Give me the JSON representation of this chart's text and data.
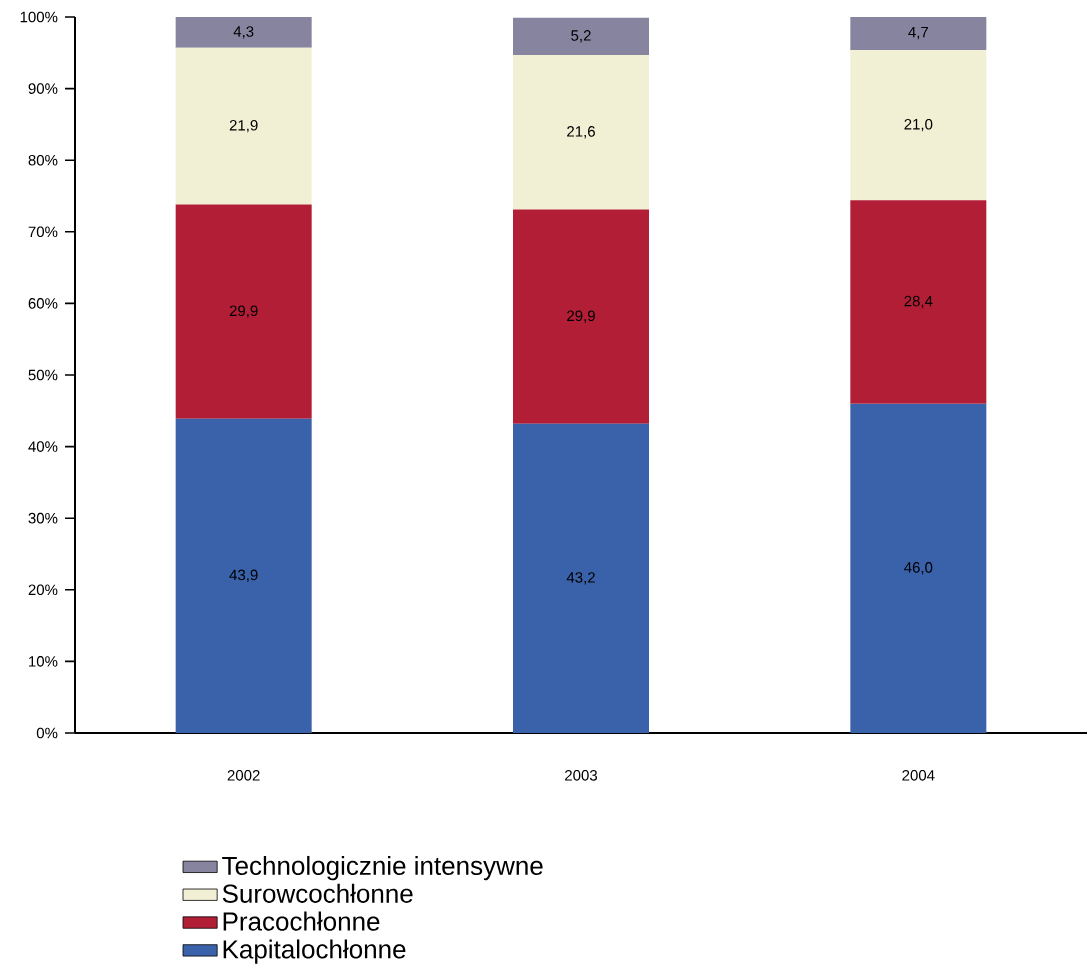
{
  "chart_data": {
    "type": "bar",
    "stacked": true,
    "categories": [
      "2002",
      "2003",
      "2004"
    ],
    "series": [
      {
        "name": "Kapitalochłonne",
        "color": "#3a62aa",
        "values": [
          43.9,
          43.2,
          46.0
        ],
        "value_labels": [
          "43,9",
          "43,2",
          "46,0"
        ]
      },
      {
        "name": "Pracochłonne",
        "color": "#b31e37",
        "values": [
          29.9,
          29.9,
          28.4
        ],
        "value_labels": [
          "29,9",
          "29,9",
          "28,4"
        ]
      },
      {
        "name": "Surowcochłonne",
        "color": "#f2f0d4",
        "values": [
          21.9,
          21.6,
          21.0
        ],
        "value_labels": [
          "21,9",
          "21,6",
          "21,0"
        ]
      },
      {
        "name": "Technologicznie intensywne",
        "color": "#87849f",
        "values": [
          4.3,
          5.2,
          4.7
        ],
        "value_labels": [
          "4,3",
          "5,2",
          "4,7"
        ]
      }
    ],
    "ylim": [
      0,
      100
    ],
    "yticks": [
      {
        "value": 0,
        "label": "0%"
      },
      {
        "value": 10,
        "label": "10%"
      },
      {
        "value": 20,
        "label": "20%"
      },
      {
        "value": 30,
        "label": "30%"
      },
      {
        "value": 40,
        "label": "40%"
      },
      {
        "value": 50,
        "label": "50%"
      },
      {
        "value": 60,
        "label": "60%"
      },
      {
        "value": 70,
        "label": "70%"
      },
      {
        "value": 80,
        "label": "80%"
      },
      {
        "value": 90,
        "label": "90%"
      },
      {
        "value": 100,
        "label": "100%"
      }
    ],
    "grid": false,
    "legend": "bottom"
  }
}
